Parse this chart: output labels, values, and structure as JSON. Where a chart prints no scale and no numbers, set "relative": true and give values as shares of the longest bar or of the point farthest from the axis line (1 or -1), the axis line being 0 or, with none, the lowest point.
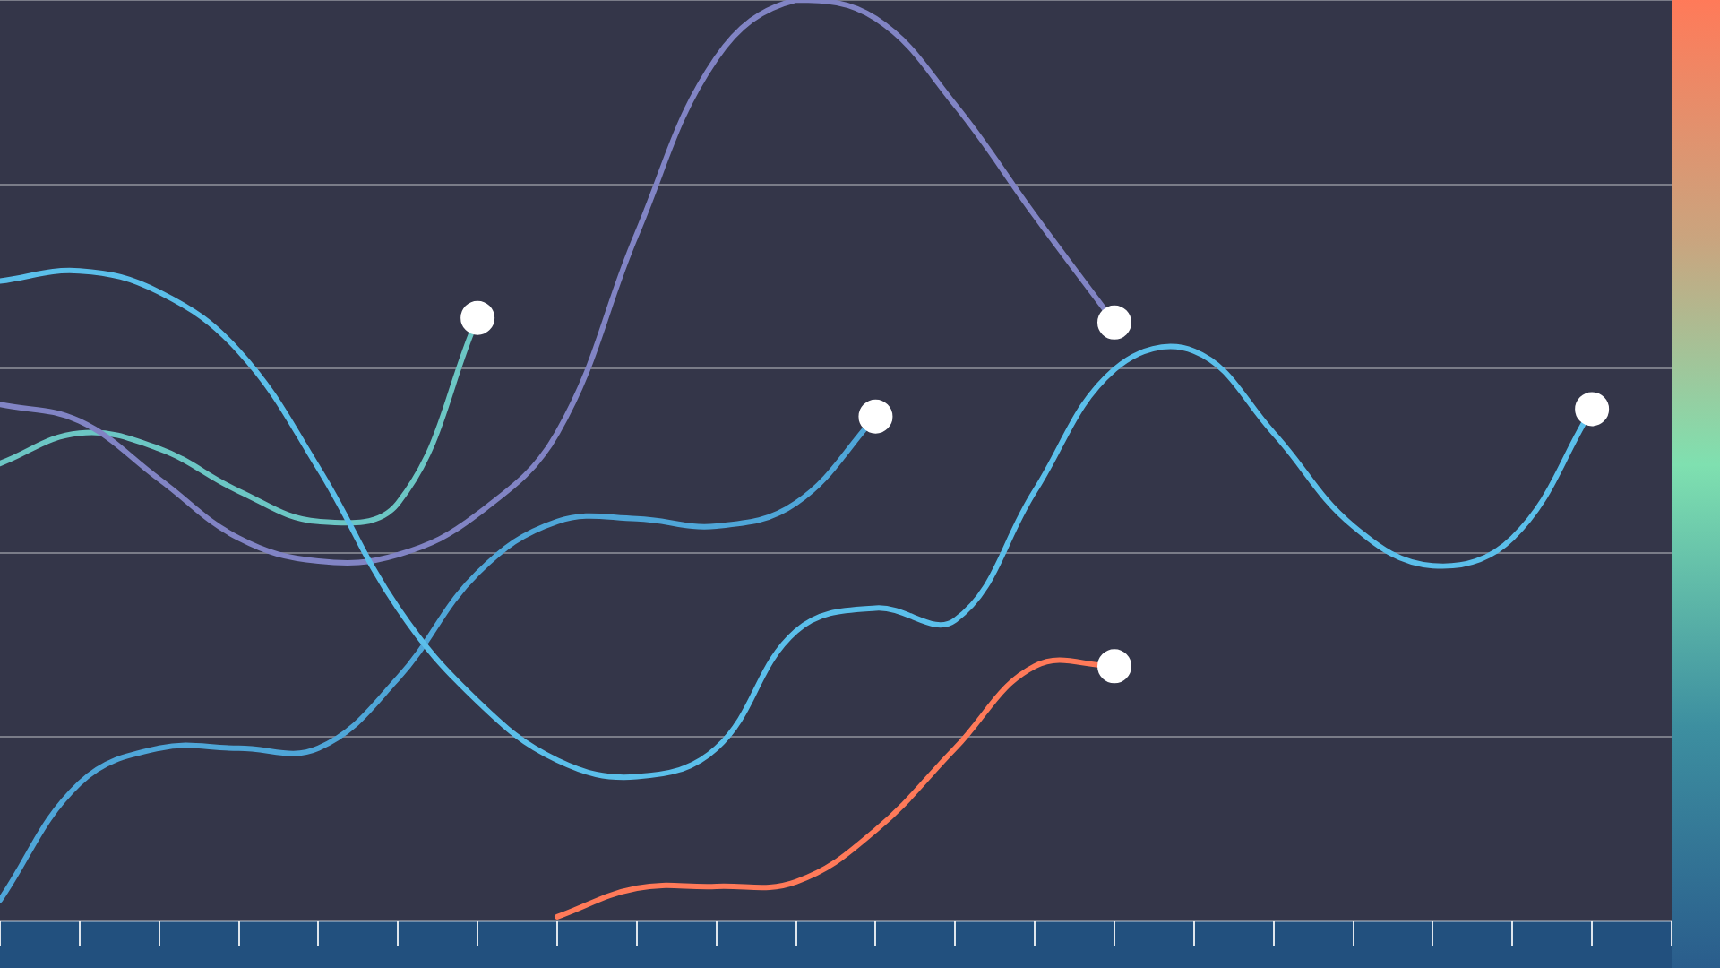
{
  "chart_data": {
    "type": "line",
    "relative": true,
    "grid": "y",
    "legend": false,
    "categories": [
      null,
      null,
      null,
      null,
      null,
      null,
      null,
      null,
      null,
      null,
      null,
      null,
      null,
      null,
      null,
      null,
      null,
      null,
      null,
      null,
      null,
      null
    ],
    "series": [
      {
        "color": "#5bbfea",
        "values": [
          0.695,
          0.706,
          0.683,
          0.619,
          0.492,
          0.34,
          0.239,
          0.175,
          0.157,
          0.188,
          0.315,
          0.34,
          0.327,
          0.467,
          0.599,
          0.619,
          0.53,
          0.429,
          0.386,
          0.416,
          0.556,
          null
        ]
      },
      {
        "color": "#8184c4",
        "values": [
          0.561,
          0.543,
          0.48,
          0.416,
          0.391,
          0.398,
          0.442,
          0.53,
          0.746,
          0.937,
          1,
          0.98,
          0.886,
          0.766,
          0.65,
          null,
          null,
          null,
          null,
          null,
          null,
          null
        ]
      },
      {
        "color": "#6cc6c4",
        "values": [
          0.497,
          0.53,
          0.513,
          0.467,
          0.434,
          0.454,
          0.655,
          null,
          null,
          null,
          null,
          null,
          null,
          null,
          null,
          null,
          null,
          null,
          null,
          null,
          null,
          null
        ]
      },
      {
        "color": "#4fa6d8",
        "values": [
          0.023,
          0.15,
          0.188,
          0.188,
          0.188,
          0.264,
          0.378,
          0.434,
          0.437,
          0.429,
          0.454,
          0.548,
          null,
          null,
          null,
          null,
          null,
          null,
          null,
          null,
          null,
          null
        ]
      },
      {
        "color": "#ff7a59",
        "values": [
          null,
          null,
          null,
          null,
          null,
          null,
          null,
          0.005,
          0.036,
          0.038,
          0.043,
          0.099,
          0.188,
          0.277,
          0.277,
          null,
          null,
          null,
          null,
          null,
          null,
          null
        ]
      }
    ]
  }
}
